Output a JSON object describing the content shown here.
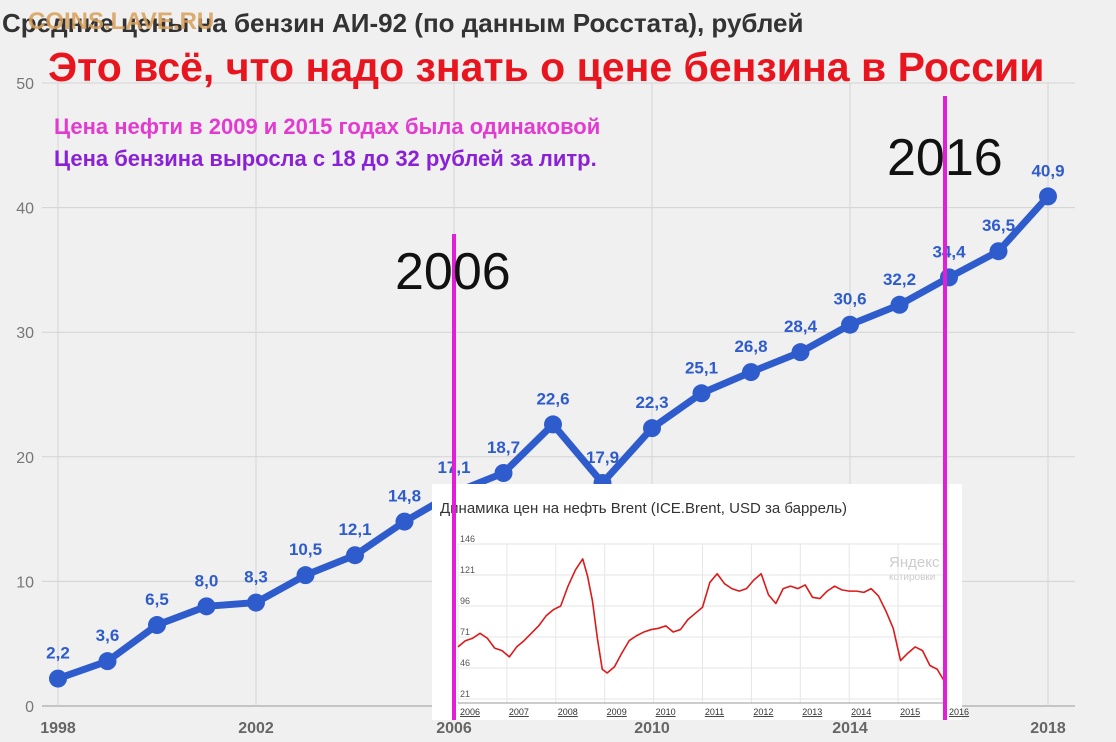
{
  "header": {
    "title": "Средние цены на бензин АИ-92 (по данным Росстата), рублей",
    "watermark": "COINS.LAVE.RU",
    "headline": "Это всё, что надо знать о цене бензина в России",
    "note_oil": "Цена нефти в 2009 и 2015 годах была одинаковой",
    "note_petrol": "Цена бензина выросла с 18 до 32 рублей за литр.",
    "mark_2006": "2006",
    "mark_2016": "2016"
  },
  "colors": {
    "line": "#2f5ccc",
    "labels": "#2f5ccc",
    "marker": "#e01fd6",
    "headline": "#e8141e",
    "note_oil": "#e33ad0",
    "note_petrol": "#8b21d6",
    "oil_line": "#dd1a1a"
  },
  "chart_data": [
    {
      "type": "line",
      "title": "Средние цены на бензин АИ-92 (по данным Росстата), рублей",
      "x": [
        1998,
        1999,
        2000,
        2001,
        2002,
        2003,
        2004,
        2005,
        2006,
        2007,
        2008,
        2009,
        2010,
        2011,
        2012,
        2013,
        2014,
        2015,
        2016,
        2017,
        2018
      ],
      "values": [
        2.2,
        3.6,
        6.5,
        8.0,
        8.3,
        10.5,
        12.1,
        14.8,
        17.1,
        18.7,
        22.6,
        17.9,
        22.3,
        25.1,
        26.8,
        28.4,
        30.6,
        32.2,
        34.4,
        36.5,
        40.9
      ],
      "data_labels": [
        "2,2",
        "3,6",
        "6,5",
        "8,0",
        "8,3",
        "10,5",
        "12,1",
        "14,8",
        "17,1",
        "18,7",
        "22,6",
        "17,9",
        "22,3",
        "25,1",
        "26,8",
        "28,4",
        "30,6",
        "32,2",
        "34,4",
        "36,5",
        "40,9"
      ],
      "x_ticks": [
        "1998",
        "2002",
        "2006",
        "2010",
        "2014",
        "2018"
      ],
      "x_tick_values": [
        1998,
        2002,
        2006,
        2010,
        2014,
        2018
      ],
      "y_ticks": [
        "0",
        "10",
        "20",
        "30",
        "40",
        "50"
      ],
      "ylim": [
        0,
        50
      ],
      "grid": true
    },
    {
      "type": "line",
      "title": "Динамика цен на нефть Brent (ICE.Brent, USD за баррель)",
      "brand": "Яндекс",
      "brand_sub": "котировки",
      "x_ticks": [
        "2006",
        "2007",
        "2008",
        "2009",
        "2010",
        "2011",
        "2012",
        "2013",
        "2014",
        "2015",
        "2016"
      ],
      "y_ticks": [
        "21",
        "46",
        "71",
        "96",
        "121",
        "146"
      ],
      "ylim": [
        21,
        146
      ],
      "xlim": [
        2006,
        2016
      ],
      "x": [
        2006.0,
        2006.15,
        2006.3,
        2006.45,
        2006.6,
        2006.75,
        2006.9,
        2007.05,
        2007.2,
        2007.35,
        2007.5,
        2007.65,
        2007.8,
        2007.95,
        2008.1,
        2008.25,
        2008.4,
        2008.55,
        2008.65,
        2008.75,
        2008.85,
        2008.95,
        2009.05,
        2009.2,
        2009.35,
        2009.5,
        2009.65,
        2009.8,
        2009.95,
        2010.1,
        2010.25,
        2010.4,
        2010.55,
        2010.7,
        2010.85,
        2011.0,
        2011.15,
        2011.3,
        2011.45,
        2011.6,
        2011.75,
        2011.9,
        2012.05,
        2012.2,
        2012.35,
        2012.5,
        2012.65,
        2012.8,
        2012.95,
        2013.1,
        2013.25,
        2013.4,
        2013.55,
        2013.7,
        2013.85,
        2014.0,
        2014.15,
        2014.3,
        2014.45,
        2014.6,
        2014.75,
        2014.9,
        2015.05,
        2015.2,
        2015.35,
        2015.5,
        2015.65,
        2015.8,
        2015.95
      ],
      "values": [
        63,
        68,
        70,
        74,
        70,
        62,
        60,
        55,
        63,
        68,
        74,
        80,
        88,
        93,
        96,
        112,
        125,
        134,
        120,
        100,
        70,
        45,
        42,
        47,
        58,
        68,
        72,
        75,
        77,
        78,
        80,
        75,
        77,
        85,
        90,
        95,
        115,
        122,
        114,
        110,
        108,
        110,
        117,
        122,
        105,
        98,
        110,
        112,
        110,
        113,
        103,
        102,
        108,
        112,
        109,
        108,
        108,
        107,
        110,
        104,
        92,
        78,
        52,
        58,
        63,
        60,
        48,
        45,
        35
      ]
    }
  ]
}
